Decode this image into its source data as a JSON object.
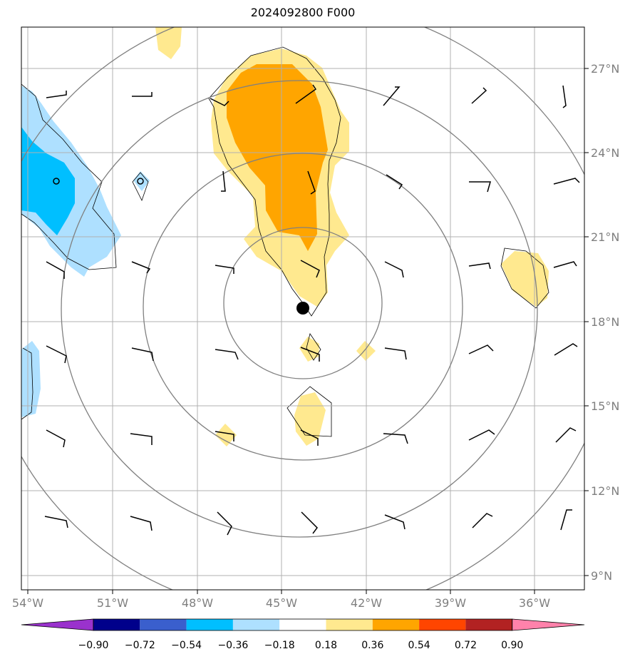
{
  "title": "2024092800 F000",
  "map": {
    "lon_range": [
      -54.3,
      -35.0
    ],
    "lat_range": [
      8.6,
      28.5
    ],
    "lat_ticks": [
      "27°N",
      "24°N",
      "21°N",
      "18°N",
      "15°N",
      "12°N",
      "9°N"
    ],
    "lon_ticks": [
      "54°W",
      "51°W",
      "48°W",
      "45°W",
      "42°W",
      "39°W",
      "36°W"
    ],
    "center": {
      "lon": -44.3,
      "lat": 18.5
    },
    "colors": {
      "grid": "#b0b0b0",
      "range_ring": "#808080",
      "fill_pos_1": "#ffe98f",
      "fill_pos_2": "#ffa500",
      "fill_neg_1": "#aee0ff",
      "fill_neg_2": "#00bfff",
      "contour": "#000000",
      "barb": "#000000",
      "center_dot": "#000000"
    }
  },
  "colorbar": {
    "labels": [
      "−0.90",
      "−0.72",
      "−0.54",
      "−0.36",
      "−0.18",
      "0.18",
      "0.36",
      "0.54",
      "0.72",
      "0.90"
    ],
    "colors": [
      "#9a32cd",
      "#00008b",
      "#3a5fcd",
      "#00bfff",
      "#aee0ff",
      "#ffffff",
      "#ffe98f",
      "#ffa500",
      "#ff4500",
      "#b22222",
      "#ff82ab"
    ]
  }
}
